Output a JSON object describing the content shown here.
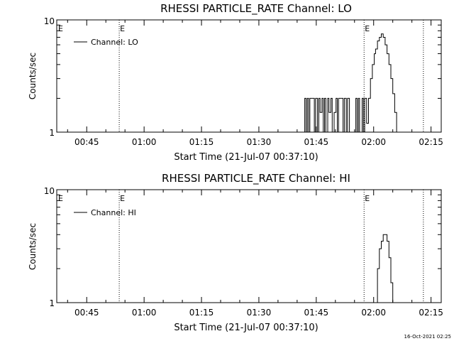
{
  "chart_data": [
    {
      "type": "line",
      "title": "RHESSI PARTICLE_RATE Channel: LO",
      "xlabel": "Start Time (21-Jul-07 00:37:10)",
      "ylabel": "Counts/sec",
      "yscale": "log",
      "ylim": [
        1,
        10
      ],
      "y_ticks": [
        "1",
        "10"
      ],
      "x_range": [
        "00:37:10",
        "02:17:40"
      ],
      "x_ticks": [
        "00:45",
        "01:00",
        "01:15",
        "01:30",
        "01:45",
        "02:00",
        "02:15"
      ],
      "legend": {
        "position": "top-left",
        "label": "Channel: LO"
      },
      "event_markers": [
        {
          "time": "00:53:30",
          "label": "E"
        },
        {
          "time": "01:57:30",
          "label": "E"
        },
        {
          "time": "02:13:00",
          "label": ""
        }
      ],
      "series": [
        {
          "name": "Channel: LO",
          "x": [
            "01:41:30",
            "01:42:00",
            "01:42:20",
            "01:42:40",
            "01:43:00",
            "01:43:20",
            "01:44:30",
            "01:44:50",
            "01:45:20",
            "01:45:40",
            "01:46:00",
            "01:46:30",
            "01:46:50",
            "01:47:10",
            "01:47:30",
            "01:48:00",
            "01:48:20",
            "01:48:50",
            "01:49:10",
            "01:49:40",
            "01:50:10",
            "01:50:30",
            "01:50:50",
            "01:52:00",
            "01:52:20",
            "01:52:50",
            "01:53:10",
            "01:53:40",
            "01:55:20",
            "01:55:40",
            "01:56:00",
            "01:56:20",
            "01:57:00",
            "01:57:20",
            "01:57:40",
            "01:58:10",
            "01:58:40",
            "01:59:10",
            "01:59:40",
            "02:00:10",
            "02:00:30",
            "02:01:00",
            "02:01:30",
            "02:02:00",
            "02:02:30",
            "02:03:00",
            "02:03:30",
            "02:04:00",
            "02:04:30",
            "02:05:00",
            "02:05:30",
            "02:06:00",
            "02:06:30"
          ],
          "values": [
            1,
            2,
            1,
            2,
            1,
            2,
            1,
            2,
            1,
            2,
            1.5,
            2,
            1,
            2,
            1,
            2,
            1.5,
            2,
            1,
            1.5,
            2,
            1,
            2,
            1,
            2,
            1,
            2,
            1,
            2,
            1,
            2,
            1,
            2,
            1,
            2,
            1.2,
            2,
            3,
            4,
            5,
            5.5,
            6.5,
            7,
            7.5,
            7,
            6,
            5,
            4,
            3,
            2.2,
            1.5,
            1,
            1
          ]
        }
      ]
    },
    {
      "type": "line",
      "title": "RHESSI PARTICLE_RATE Channel: HI",
      "xlabel": "Start Time (21-Jul-07 00:37:10)",
      "ylabel": "Counts/sec",
      "yscale": "log",
      "ylim": [
        1,
        10
      ],
      "y_ticks": [
        "1",
        "10"
      ],
      "x_range": [
        "00:37:10",
        "02:17:40"
      ],
      "x_ticks": [
        "00:45",
        "01:00",
        "01:15",
        "01:30",
        "01:45",
        "02:00",
        "02:15"
      ],
      "legend": {
        "position": "top-left",
        "label": "Channel: HI"
      },
      "event_markers": [
        {
          "time": "00:53:30",
          "label": "E"
        },
        {
          "time": "01:57:30",
          "label": "E"
        },
        {
          "time": "02:13:00",
          "label": ""
        }
      ],
      "series": [
        {
          "name": "Channel: HI",
          "x": [
            "02:00:30",
            "02:01:00",
            "02:01:30",
            "02:02:00",
            "02:02:30",
            "02:03:00",
            "02:03:30",
            "02:04:00",
            "02:04:30",
            "02:05:00"
          ],
          "values": [
            1,
            2,
            3,
            3.5,
            4,
            4,
            3.5,
            2.5,
            1.5,
            1
          ]
        }
      ]
    }
  ],
  "footer": {
    "timestamp": "16-Oct-2021 02:25"
  }
}
